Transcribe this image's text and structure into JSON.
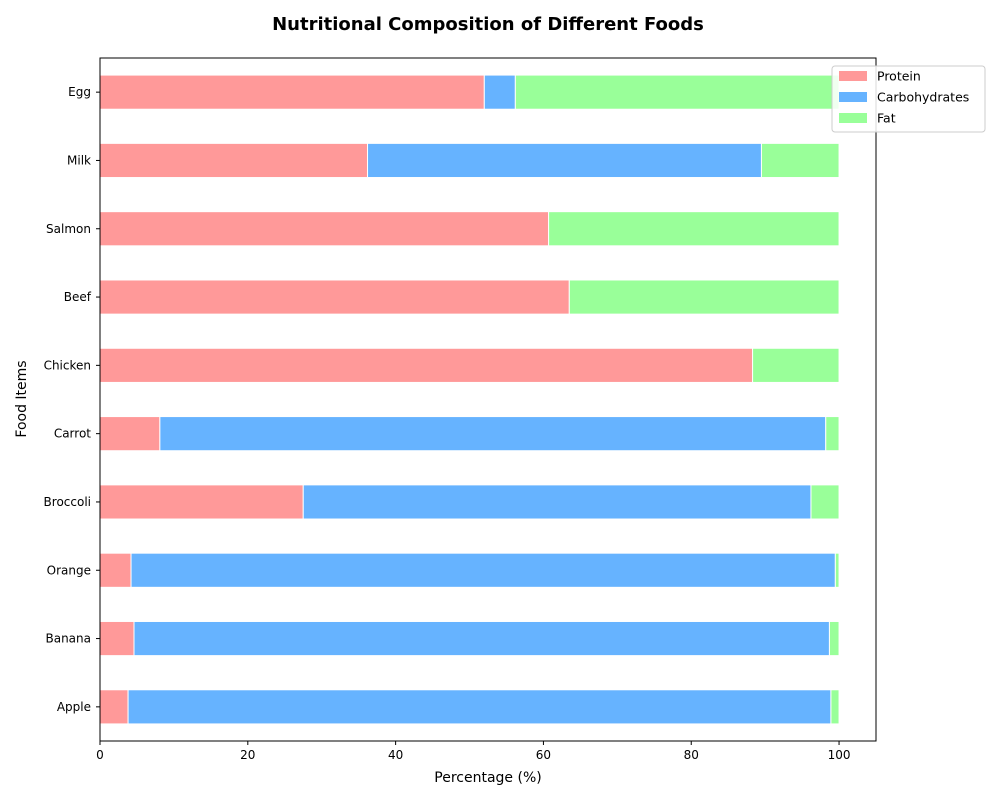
{
  "chart_data": {
    "type": "bar",
    "orientation": "horizontal",
    "stacked": true,
    "title": "Nutritional Composition of Different Foods",
    "xlabel": "Percentage (%)",
    "ylabel": "Food Items",
    "xlim": [
      0,
      105
    ],
    "xticks": [
      0,
      20,
      40,
      60,
      80,
      100
    ],
    "categories": [
      "Apple",
      "Banana",
      "Orange",
      "Broccoli",
      "Carrot",
      "Chicken",
      "Beef",
      "Salmon",
      "Milk",
      "Egg"
    ],
    "series": [
      {
        "name": "Protein",
        "color": "#ff9999",
        "values": [
          3.8,
          4.6,
          4.2,
          27.5,
          8.1,
          88.3,
          63.5,
          60.7,
          36.2,
          52.0
        ]
      },
      {
        "name": "Carbohydrates",
        "color": "#66b3ff",
        "values": [
          95.1,
          94.1,
          95.3,
          68.7,
          90.1,
          0.0,
          0.0,
          0.0,
          53.3,
          4.2
        ]
      },
      {
        "name": "Fat",
        "color": "#99ff99",
        "values": [
          1.1,
          1.3,
          0.5,
          3.8,
          1.8,
          11.7,
          36.5,
          39.3,
          10.5,
          43.8
        ]
      }
    ],
    "legend": "top-right",
    "grid": false
  }
}
